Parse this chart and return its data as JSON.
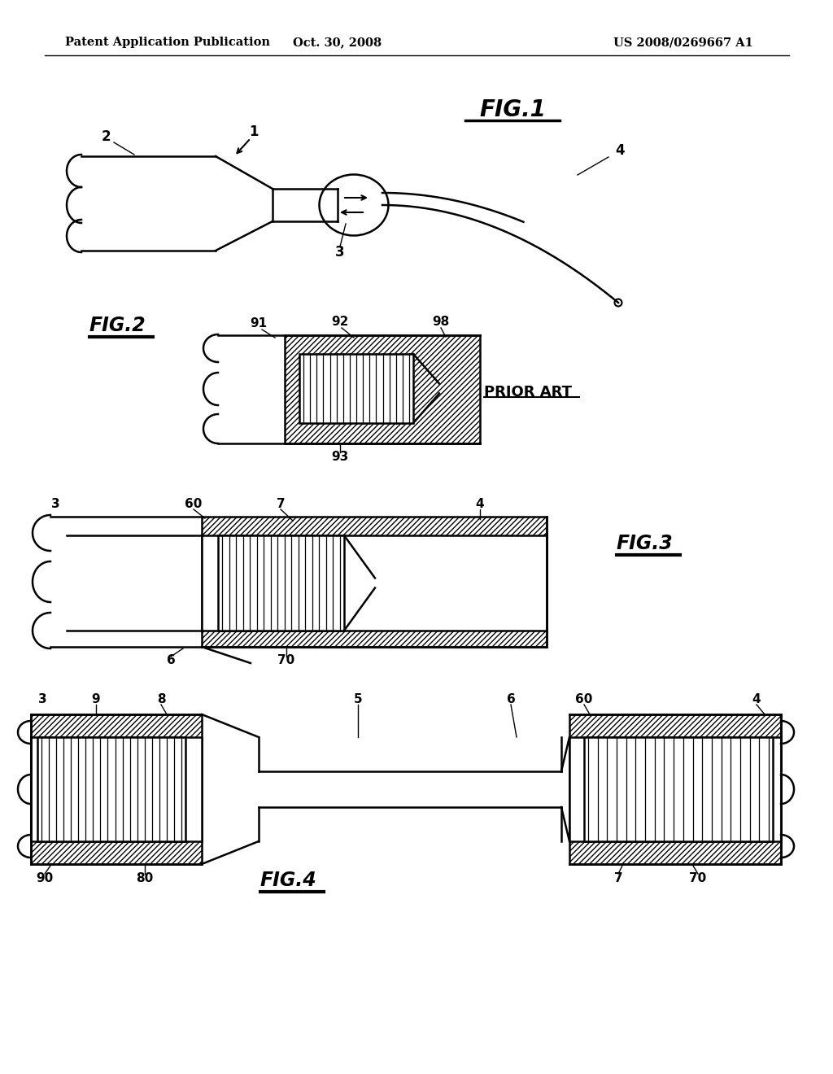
{
  "bg_color": "#ffffff",
  "line_color": "#000000",
  "header_left": "Patent Application Publication",
  "header_center": "Oct. 30, 2008",
  "header_right": "US 2008/0269667 A1",
  "fig1_title": "FIG.1",
  "fig2_title": "FIG.2",
  "fig3_title": "FIG.3",
  "fig4_title": "FIG.4",
  "prior_art_label": "PRIOR ART"
}
